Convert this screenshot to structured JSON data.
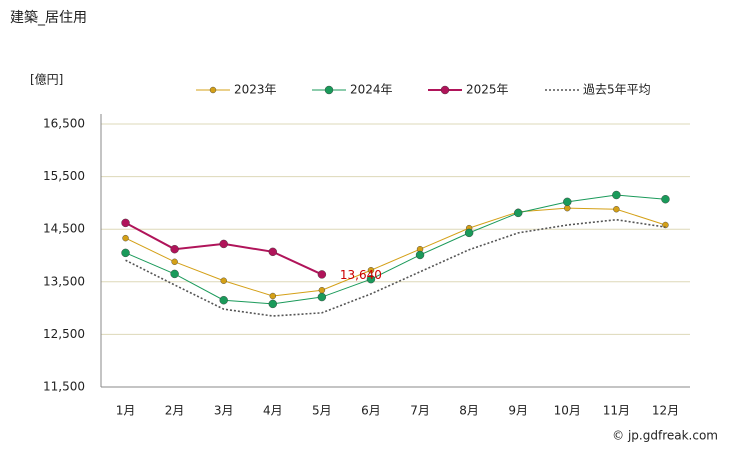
{
  "chart_data": {
    "type": "line",
    "title": "建築_居住用",
    "y_axis_label": "[億円]",
    "credit": "© jp.gdfreak.com",
    "categories": [
      "1月",
      "2月",
      "3月",
      "4月",
      "5月",
      "6月",
      "7月",
      "8月",
      "9月",
      "10月",
      "11月",
      "12月"
    ],
    "series": [
      {
        "name": "2023年",
        "color": "#d4a017",
        "style": "marker",
        "values": [
          14330,
          13880,
          13520,
          13230,
          13340,
          13720,
          14120,
          14520,
          14830,
          14900,
          14880,
          14580
        ]
      },
      {
        "name": "2024年",
        "color": "#1a9a5a",
        "style": "marker",
        "values": [
          14050,
          13650,
          13150,
          13080,
          13210,
          13550,
          14010,
          14430,
          14810,
          15020,
          15150,
          15070
        ]
      },
      {
        "name": "2025年",
        "color": "#b0145a",
        "style": "marker",
        "values": [
          14620,
          14120,
          14220,
          14070,
          13640,
          null,
          null,
          null,
          null,
          null,
          null,
          null
        ],
        "value_labels": [
          null,
          null,
          null,
          null,
          "13,640",
          null,
          null,
          null,
          null,
          null,
          null,
          null
        ]
      },
      {
        "name": "過去5年平均",
        "color": "#555555",
        "style": "dotted",
        "values": [
          13910,
          13440,
          12980,
          12850,
          12910,
          13270,
          13690,
          14110,
          14430,
          14580,
          14680,
          14540
        ]
      }
    ],
    "ylim": [
      11500,
      16500
    ],
    "yticks": [
      {
        "value": 11500,
        "label": "11,500"
      },
      {
        "value": 12500,
        "label": "12,500"
      },
      {
        "value": 13500,
        "label": "13,500"
      },
      {
        "value": 14500,
        "label": "14,500"
      },
      {
        "value": 15500,
        "label": "15,500"
      },
      {
        "value": 16500,
        "label": "16,500"
      }
    ],
    "grid": true,
    "legend": "top"
  }
}
